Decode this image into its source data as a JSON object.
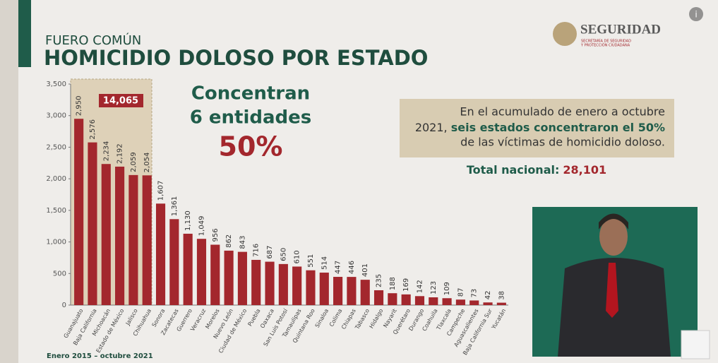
{
  "chart_data": {
    "type": "bar",
    "supertitle": "FUERO COMÚN",
    "title": "HOMICIDIO DOLOSO POR ESTADO",
    "categories": [
      "Guanajuato",
      "Baja California",
      "Michoacán",
      "Estado de México",
      "Jalisco",
      "Chihuahua",
      "Sonora",
      "Zacatecas",
      "Guerrero",
      "Veracruz",
      "Morelos",
      "Nuevo León",
      "Ciudad de México",
      "Puebla",
      "Oaxaca",
      "San Luis Potosí",
      "Tamaulipas",
      "Quintana Roo",
      "Sinaloa",
      "Colima",
      "Chiapas",
      "Tabasco",
      "Hidalgo",
      "Nayarit",
      "Querétaro",
      "Durango",
      "Coahuila",
      "Tlaxcala",
      "Campeche",
      "Aguascalientes",
      "Baja California Sur",
      "Yucatán"
    ],
    "values": [
      2950,
      2576,
      2234,
      2192,
      2059,
      2054,
      1607,
      1361,
      1130,
      1049,
      956,
      862,
      843,
      716,
      687,
      650,
      610,
      551,
      514,
      447,
      446,
      401,
      235,
      188,
      169,
      142,
      123,
      109,
      87,
      73,
      42,
      38
    ],
    "value_labels": [
      "2,950",
      "2,576",
      "2,234",
      "2,192",
      "2,059",
      "2,054",
      "1,607",
      "1,361",
      "1,130",
      "1,049",
      "956",
      "862",
      "843",
      "716",
      "687",
      "650",
      "610",
      "551",
      "514",
      "447",
      "446",
      "401",
      "235",
      "188",
      "169",
      "142",
      "123",
      "109",
      "87",
      "73",
      "42",
      "38"
    ],
    "color": "#a3272d",
    "ylim": [
      0,
      3500
    ],
    "yticks": [
      0,
      500,
      {
        "value": 1000,
        "label": "1,000"
      },
      {
        "value": 1500,
        "label": "1,500"
      },
      {
        "value": 2000,
        "label": "2,000"
      },
      {
        "value": 2500,
        "label": "2,500"
      },
      {
        "value": 3000,
        "label": "3,000"
      },
      {
        "value": 3500,
        "label": "3,500"
      }
    ],
    "highlight_total": "14,065",
    "headline": [
      "Concentran",
      "6 entidades"
    ],
    "headline_percent": "50%",
    "note": [
      "En el acumulado de enero a octubre",
      "2021, ",
      "seis estados concentraron el 50%",
      "de las víctimas de homicidio doloso."
    ],
    "total_label": "Total nacional:",
    "total_value": "28,101",
    "footnote": "Enero 2015 – octubre 2021"
  },
  "logo": {
    "name": "SEGURIDAD",
    "subtitle": [
      "SECRETARÍA DE SEGURIDAD",
      "Y PROTECCIÓN CIUDADANA"
    ]
  },
  "info_icon": "i"
}
